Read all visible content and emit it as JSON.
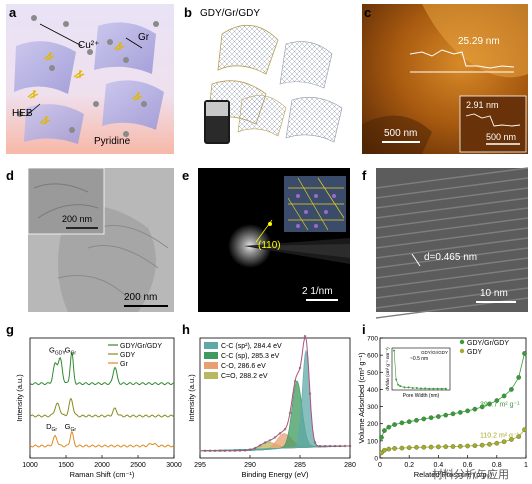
{
  "panels": {
    "a": {
      "label": "a",
      "cu": "Cu²⁺",
      "gr": "Gr",
      "heb": "HEB",
      "pyridine": "Pyridine"
    },
    "b": {
      "label": "b",
      "title": "GDY/Gr/GDY"
    },
    "c": {
      "label": "c",
      "height_main": "25.29 nm",
      "height_inset": "2.91 nm",
      "scale_main": "500 nm",
      "scale_inset": "500 nm"
    },
    "d": {
      "label": "d",
      "scale_inset": "200 nm",
      "scale_main": "200 nm"
    },
    "e": {
      "label": "e",
      "miller": "(110)",
      "scale": "2 1/nm"
    },
    "f": {
      "label": "f",
      "dspacing": "d=0.465 nm",
      "scale": "10 nm"
    },
    "g": {
      "label": "g"
    },
    "h": {
      "label": "h"
    },
    "i": {
      "label": "i",
      "watermark": "材料分析与应用"
    }
  },
  "chart_data": [
    {
      "id": "g",
      "type": "line",
      "xlabel": "Raman Shift (cm⁻¹)",
      "ylabel": "Intensity (a.u.)",
      "xlim": [
        1000,
        3000
      ],
      "xticks": [
        1000,
        1500,
        2000,
        2500,
        3000
      ],
      "legend_position": "top-right",
      "series": [
        {
          "name": "GDY/Gr/GDY",
          "color": "#2e8b2e",
          "offset": 0.62,
          "peaks": [
            [
              1350,
              0.16,
              40
            ],
            [
              1420,
              0.2,
              40
            ],
            [
              1580,
              0.26,
              30
            ],
            [
              2180,
              0.14,
              35
            ]
          ]
        },
        {
          "name": "GDY",
          "color": "#8a8a1e",
          "offset": 0.35,
          "peaks": [
            [
              1380,
              0.1,
              50
            ],
            [
              1570,
              0.14,
              40
            ],
            [
              2180,
              0.06,
              40
            ]
          ]
        },
        {
          "name": "Gr",
          "color": "#e08a1e",
          "offset": 0.1,
          "peaks": [
            [
              1350,
              0.08,
              40
            ],
            [
              1580,
              0.12,
              30
            ],
            [
              2700,
              0.02,
              60
            ]
          ]
        }
      ],
      "annotations": [
        {
          "text": "G",
          "sub": "GDY",
          "x": 1380,
          "y": 0.88
        },
        {
          "text": "G",
          "sub": "Gr",
          "x": 1560,
          "y": 0.88
        },
        {
          "text": "D",
          "sub": "Gr",
          "x": 1300,
          "y": 0.24
        },
        {
          "text": "G",
          "sub": "Gr",
          "x": 1560,
          "y": 0.24
        }
      ]
    },
    {
      "id": "h",
      "type": "area",
      "xlabel": "Binding Energy (eV)",
      "ylabel": "Intensity (a.u.)",
      "xlim": [
        295,
        280
      ],
      "xticks": [
        295,
        290,
        285,
        280
      ],
      "legend_position": "top-left",
      "series": [
        {
          "name": "C-C (sp²), 284.4 eV",
          "color": "#5fa8a8",
          "center": 284.4,
          "amp": 0.8,
          "width": 0.5
        },
        {
          "name": "C-C (sp), 285.3 eV",
          "color": "#3e9a5e",
          "center": 285.3,
          "amp": 0.55,
          "width": 0.7
        },
        {
          "name": "C-O, 286.6 eV",
          "color": "#e8a070",
          "center": 286.6,
          "amp": 0.12,
          "width": 1.0
        },
        {
          "name": "C=O, 288.2 eV",
          "color": "#b8b860",
          "center": 288.2,
          "amp": 0.06,
          "width": 1.2
        }
      ]
    },
    {
      "id": "i",
      "type": "scatter",
      "xlabel": "Related Pressure (p/p₀)",
      "ylabel": "Volume Adsorbed (cm³ g⁻¹)",
      "xlim": [
        0,
        1.0
      ],
      "ylim": [
        0,
        700
      ],
      "xticks": [
        0.0,
        0.2,
        0.4,
        0.6,
        0.8,
        1.0
      ],
      "yticks": [
        0,
        100,
        200,
        300,
        400,
        500,
        600,
        700
      ],
      "legend_position": "top-right",
      "series": [
        {
          "name": "GDY/Gr/GDY",
          "color": "#3a9a3a",
          "area_label": "393.7 m² g⁻¹",
          "x": [
            0.01,
            0.03,
            0.06,
            0.1,
            0.15,
            0.2,
            0.25,
            0.3,
            0.35,
            0.4,
            0.45,
            0.5,
            0.55,
            0.6,
            0.65,
            0.7,
            0.75,
            0.8,
            0.85,
            0.9,
            0.95,
            0.99
          ],
          "y": [
            120,
            160,
            180,
            195,
            205,
            212,
            220,
            228,
            235,
            242,
            250,
            258,
            266,
            275,
            285,
            298,
            315,
            335,
            362,
            400,
            470,
            610
          ]
        },
        {
          "name": "GDY",
          "color": "#a8a82a",
          "area_label": "110.2 m² g⁻¹",
          "x": [
            0.01,
            0.03,
            0.06,
            0.1,
            0.15,
            0.2,
            0.25,
            0.3,
            0.35,
            0.4,
            0.45,
            0.5,
            0.55,
            0.6,
            0.65,
            0.7,
            0.75,
            0.8,
            0.85,
            0.9,
            0.95,
            0.99
          ],
          "y": [
            30,
            45,
            52,
            56,
            58,
            60,
            62,
            63,
            64,
            65,
            66,
            67,
            68,
            70,
            72,
            75,
            80,
            86,
            95,
            108,
            125,
            165
          ]
        }
      ],
      "inset": {
        "xlabel": "Pore Width (nm)",
        "ylabel": "dV/dw (cm³ g⁻¹ nm⁻¹)",
        "series": "GDY/Gr/GDY",
        "annotation": "~0.5 nm",
        "x": [
          0.5,
          1,
          1.5,
          2,
          3,
          4,
          5,
          6,
          7,
          8,
          9,
          10,
          11,
          12,
          13
        ],
        "y": [
          0.3,
          0.08,
          0.04,
          0.03,
          0.02,
          0.02,
          0.015,
          0.015,
          0.012,
          0.012,
          0.01,
          0.01,
          0.01,
          0.01,
          0.01
        ]
      }
    }
  ]
}
